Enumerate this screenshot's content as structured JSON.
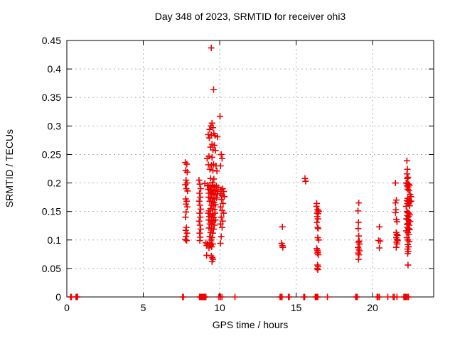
{
  "chart_data": {
    "type": "scatter",
    "title": "Day 348 of 2023, SRMTID for receiver ohi3",
    "xlabel": "GPS time / hours",
    "ylabel": "SRMTID / TECUs",
    "xlim": [
      0,
      24
    ],
    "ylim": [
      0,
      0.45
    ],
    "grid": true,
    "legend": "none",
    "xticks": [
      [
        0,
        "0"
      ],
      [
        5,
        "5"
      ],
      [
        10,
        "10"
      ],
      [
        15,
        "15"
      ],
      [
        20,
        "20"
      ]
    ],
    "yticks": [
      [
        0,
        "0"
      ],
      [
        0.05,
        "0.05"
      ],
      [
        0.1,
        "0.1"
      ],
      [
        0.15,
        "0.15"
      ],
      [
        0.2,
        "0.2"
      ],
      [
        0.25,
        "0.25"
      ],
      [
        0.3,
        "0.3"
      ],
      [
        0.35,
        "0.35"
      ],
      [
        0.4,
        "0.4"
      ],
      [
        0.45,
        "0.45"
      ]
    ],
    "marker": {
      "symbol": "plus",
      "color": "#ee0000",
      "size": 9
    },
    "grid_color": "#b0b0b0",
    "axis_color": "#000000",
    "points": [
      [
        0.25,
        0
      ],
      [
        0.3,
        0
      ],
      [
        0.6,
        0
      ],
      [
        0.65,
        0
      ],
      [
        0.7,
        0
      ],
      [
        7.58,
        0
      ],
      [
        7.63,
        0
      ],
      [
        8.68,
        0
      ],
      [
        8.72,
        0
      ],
      [
        8.76,
        0
      ],
      [
        8.8,
        0
      ],
      [
        8.84,
        0
      ],
      [
        8.88,
        0
      ],
      [
        8.92,
        0
      ],
      [
        8.96,
        0
      ],
      [
        9.0,
        0
      ],
      [
        9.05,
        0
      ],
      [
        9.1,
        0
      ],
      [
        9.95,
        0
      ],
      [
        10.05,
        0
      ],
      [
        10.15,
        0
      ],
      [
        11.0,
        0
      ],
      [
        13.95,
        0
      ],
      [
        14.0,
        0
      ],
      [
        14.08,
        0
      ],
      [
        14.5,
        0
      ],
      [
        14.55,
        0
      ],
      [
        15.5,
        0
      ],
      [
        15.56,
        0
      ],
      [
        16.25,
        0
      ],
      [
        16.3,
        0
      ],
      [
        16.36,
        0
      ],
      [
        16.42,
        0
      ],
      [
        17.05,
        0
      ],
      [
        18.9,
        0
      ],
      [
        18.95,
        0
      ],
      [
        19.0,
        0
      ],
      [
        20.3,
        0
      ],
      [
        20.36,
        0
      ],
      [
        20.45,
        0
      ],
      [
        21.0,
        0
      ],
      [
        21.35,
        0
      ],
      [
        21.42,
        0
      ],
      [
        21.6,
        0
      ],
      [
        22.05,
        0
      ],
      [
        22.1,
        0
      ],
      [
        22.15,
        0
      ],
      [
        22.2,
        0
      ],
      [
        22.28,
        0
      ],
      [
        22.35,
        0
      ],
      [
        7.75,
        0.236
      ],
      [
        7.85,
        0.233
      ],
      [
        7.78,
        0.222
      ],
      [
        7.88,
        0.219
      ],
      [
        7.8,
        0.205
      ],
      [
        7.86,
        0.2
      ],
      [
        7.76,
        0.197
      ],
      [
        7.82,
        0.19
      ],
      [
        7.9,
        0.186
      ],
      [
        7.78,
        0.172
      ],
      [
        7.84,
        0.168
      ],
      [
        7.8,
        0.163
      ],
      [
        7.88,
        0.158
      ],
      [
        7.8,
        0.149
      ],
      [
        7.76,
        0.14
      ],
      [
        7.82,
        0.122
      ],
      [
        7.78,
        0.117
      ],
      [
        7.86,
        0.112
      ],
      [
        7.8,
        0.106
      ],
      [
        7.76,
        0.101
      ],
      [
        7.84,
        0.099
      ],
      [
        8.65,
        0.205
      ],
      [
        8.7,
        0.198
      ],
      [
        8.76,
        0.19
      ],
      [
        8.68,
        0.182
      ],
      [
        8.73,
        0.175
      ],
      [
        8.66,
        0.168
      ],
      [
        8.71,
        0.161
      ],
      [
        8.76,
        0.154
      ],
      [
        8.69,
        0.147
      ],
      [
        8.73,
        0.14
      ],
      [
        8.66,
        0.133
      ],
      [
        8.71,
        0.126
      ],
      [
        8.76,
        0.119
      ],
      [
        8.69,
        0.112
      ],
      [
        8.73,
        0.105
      ],
      [
        8.7,
        0.099
      ],
      [
        9.45,
        0.437
      ],
      [
        9.6,
        0.364
      ],
      [
        9.5,
        0.305
      ],
      [
        9.42,
        0.3
      ],
      [
        9.56,
        0.297
      ],
      [
        9.35,
        0.294
      ],
      [
        9.62,
        0.287
      ],
      [
        9.25,
        0.285
      ],
      [
        9.45,
        0.284
      ],
      [
        9.7,
        0.283
      ],
      [
        9.85,
        0.281
      ],
      [
        9.32,
        0.279
      ],
      [
        9.5,
        0.268
      ],
      [
        9.65,
        0.266
      ],
      [
        9.4,
        0.263
      ],
      [
        9.56,
        0.258
      ],
      [
        9.73,
        0.257
      ],
      [
        9.3,
        0.247
      ],
      [
        9.5,
        0.245
      ],
      [
        9.18,
        0.243
      ],
      [
        9.6,
        0.233
      ],
      [
        9.26,
        0.232
      ],
      [
        9.46,
        0.231
      ],
      [
        9.76,
        0.23
      ],
      [
        9.36,
        0.224
      ],
      [
        9.56,
        0.222
      ],
      [
        9.82,
        0.221
      ],
      [
        9.4,
        0.208
      ],
      [
        9.62,
        0.207
      ],
      [
        9.52,
        0.201
      ],
      [
        9.03,
        0.199
      ],
      [
        9.2,
        0.196
      ],
      [
        9.3,
        0.195
      ],
      [
        9.42,
        0.194
      ],
      [
        9.55,
        0.196
      ],
      [
        9.65,
        0.193
      ],
      [
        9.78,
        0.195
      ],
      [
        9.9,
        0.192
      ],
      [
        9.25,
        0.189
      ],
      [
        9.38,
        0.188
      ],
      [
        9.5,
        0.187
      ],
      [
        9.62,
        0.186
      ],
      [
        9.75,
        0.188
      ],
      [
        9.88,
        0.185
      ],
      [
        9.3,
        0.182
      ],
      [
        9.45,
        0.181
      ],
      [
        9.58,
        0.18
      ],
      [
        9.7,
        0.179
      ],
      [
        9.85,
        0.181
      ],
      [
        9.28,
        0.175
      ],
      [
        9.4,
        0.174
      ],
      [
        9.55,
        0.173
      ],
      [
        9.68,
        0.172
      ],
      [
        9.8,
        0.174
      ],
      [
        9.35,
        0.168
      ],
      [
        9.5,
        0.167
      ],
      [
        9.63,
        0.166
      ],
      [
        9.45,
        0.161
      ],
      [
        9.58,
        0.16
      ],
      [
        9.72,
        0.162
      ],
      [
        9.4,
        0.155
      ],
      [
        9.55,
        0.154
      ],
      [
        9.68,
        0.153
      ],
      [
        9.3,
        0.151
      ],
      [
        9.25,
        0.147
      ],
      [
        9.4,
        0.146
      ],
      [
        9.55,
        0.145
      ],
      [
        9.7,
        0.147
      ],
      [
        9.32,
        0.141
      ],
      [
        9.48,
        0.14
      ],
      [
        9.62,
        0.139
      ],
      [
        9.28,
        0.135
      ],
      [
        9.44,
        0.134
      ],
      [
        9.58,
        0.133
      ],
      [
        9.72,
        0.135
      ],
      [
        9.35,
        0.128
      ],
      [
        9.5,
        0.127
      ],
      [
        9.65,
        0.126
      ],
      [
        9.3,
        0.121
      ],
      [
        9.46,
        0.12
      ],
      [
        9.6,
        0.119
      ],
      [
        9.4,
        0.113
      ],
      [
        9.55,
        0.112
      ],
      [
        9.35,
        0.106
      ],
      [
        9.5,
        0.104
      ],
      [
        9.45,
        0.1
      ],
      [
        9.1,
        0.095
      ],
      [
        9.2,
        0.093
      ],
      [
        9.15,
        0.09
      ],
      [
        9.35,
        0.094
      ],
      [
        9.42,
        0.091
      ],
      [
        9.48,
        0.088
      ],
      [
        9.55,
        0.093
      ],
      [
        9.3,
        0.086
      ],
      [
        9.15,
        0.073
      ],
      [
        9.45,
        0.072
      ],
      [
        9.52,
        0.069
      ],
      [
        9.56,
        0.066
      ],
      [
        9.5,
        0.062
      ],
      [
        10.02,
        0.317
      ],
      [
        10.1,
        0.25
      ],
      [
        10.16,
        0.243
      ],
      [
        10.06,
        0.23
      ],
      [
        10.2,
        0.19
      ],
      [
        10.1,
        0.188
      ],
      [
        10.26,
        0.185
      ],
      [
        10.06,
        0.181
      ],
      [
        10.16,
        0.178
      ],
      [
        10.3,
        0.176
      ],
      [
        10.12,
        0.171
      ],
      [
        10.22,
        0.164
      ],
      [
        10.06,
        0.158
      ],
      [
        10.16,
        0.152
      ],
      [
        10.26,
        0.147
      ],
      [
        10.1,
        0.14
      ],
      [
        10.2,
        0.133
      ],
      [
        10.06,
        0.128
      ],
      [
        10.16,
        0.122
      ],
      [
        10.1,
        0.106
      ],
      [
        10.05,
        0.094
      ],
      [
        14.1,
        0.123
      ],
      [
        14.05,
        0.094
      ],
      [
        14.1,
        0.09
      ],
      [
        14.13,
        0.087
      ],
      [
        15.58,
        0.208
      ],
      [
        15.62,
        0.203
      ],
      [
        16.35,
        0.164
      ],
      [
        16.33,
        0.159
      ],
      [
        16.4,
        0.153
      ],
      [
        16.46,
        0.151
      ],
      [
        16.38,
        0.147
      ],
      [
        16.43,
        0.146
      ],
      [
        16.48,
        0.15
      ],
      [
        16.38,
        0.141
      ],
      [
        16.43,
        0.137
      ],
      [
        16.36,
        0.131
      ],
      [
        16.41,
        0.122
      ],
      [
        16.44,
        0.12
      ],
      [
        16.42,
        0.104
      ],
      [
        16.48,
        0.1
      ],
      [
        16.35,
        0.085
      ],
      [
        16.39,
        0.082
      ],
      [
        16.43,
        0.079
      ],
      [
        16.4,
        0.077
      ],
      [
        16.45,
        0.074
      ],
      [
        16.4,
        0.056
      ],
      [
        16.44,
        0.053
      ],
      [
        16.38,
        0.05
      ],
      [
        16.42,
        0.048
      ],
      [
        19.1,
        0.165
      ],
      [
        19.05,
        0.151
      ],
      [
        19.08,
        0.131
      ],
      [
        19.06,
        0.12
      ],
      [
        19.1,
        0.107
      ],
      [
        19.13,
        0.098
      ],
      [
        19.08,
        0.096
      ],
      [
        19.15,
        0.093
      ],
      [
        19.05,
        0.087
      ],
      [
        19.1,
        0.084
      ],
      [
        19.15,
        0.081
      ],
      [
        19.06,
        0.077
      ],
      [
        19.11,
        0.074
      ],
      [
        19.08,
        0.066
      ],
      [
        20.45,
        0.123
      ],
      [
        20.4,
        0.099
      ],
      [
        20.5,
        0.098
      ],
      [
        20.45,
        0.086
      ],
      [
        21.5,
        0.2
      ],
      [
        21.56,
        0.17
      ],
      [
        21.5,
        0.165
      ],
      [
        21.53,
        0.153
      ],
      [
        21.5,
        0.148
      ],
      [
        21.56,
        0.136
      ],
      [
        21.6,
        0.132
      ],
      [
        21.55,
        0.113
      ],
      [
        21.58,
        0.11
      ],
      [
        21.63,
        0.108
      ],
      [
        21.55,
        0.104
      ],
      [
        21.6,
        0.101
      ],
      [
        21.64,
        0.099
      ],
      [
        21.57,
        0.096
      ],
      [
        21.6,
        0.093
      ],
      [
        21.55,
        0.087
      ],
      [
        22.25,
        0.239
      ],
      [
        22.28,
        0.224
      ],
      [
        22.25,
        0.216
      ],
      [
        22.32,
        0.21
      ],
      [
        22.27,
        0.208
      ],
      [
        22.2,
        0.2
      ],
      [
        22.28,
        0.199
      ],
      [
        22.36,
        0.198
      ],
      [
        22.25,
        0.195
      ],
      [
        22.33,
        0.193
      ],
      [
        22.42,
        0.196
      ],
      [
        22.3,
        0.189
      ],
      [
        22.38,
        0.187
      ],
      [
        22.46,
        0.18
      ],
      [
        22.52,
        0.176
      ],
      [
        22.3,
        0.173
      ],
      [
        22.25,
        0.169
      ],
      [
        22.33,
        0.168
      ],
      [
        22.4,
        0.17
      ],
      [
        22.46,
        0.167
      ],
      [
        22.52,
        0.168
      ],
      [
        22.36,
        0.164
      ],
      [
        22.28,
        0.164
      ],
      [
        22.2,
        0.159
      ],
      [
        22.43,
        0.16
      ],
      [
        22.25,
        0.15
      ],
      [
        22.31,
        0.148
      ],
      [
        22.38,
        0.147
      ],
      [
        22.28,
        0.143
      ],
      [
        22.35,
        0.141
      ],
      [
        22.45,
        0.144
      ],
      [
        22.22,
        0.137
      ],
      [
        22.3,
        0.136
      ],
      [
        22.38,
        0.134
      ],
      [
        22.46,
        0.132
      ],
      [
        22.32,
        0.129
      ],
      [
        22.25,
        0.127
      ],
      [
        22.4,
        0.126
      ],
      [
        22.28,
        0.122
      ],
      [
        22.35,
        0.12
      ],
      [
        22.43,
        0.118
      ],
      [
        22.2,
        0.116
      ],
      [
        22.3,
        0.113
      ],
      [
        22.37,
        0.11
      ],
      [
        22.25,
        0.104
      ],
      [
        22.32,
        0.1
      ],
      [
        22.4,
        0.097
      ],
      [
        22.3,
        0.092
      ],
      [
        22.36,
        0.088
      ],
      [
        22.28,
        0.084
      ],
      [
        22.33,
        0.08
      ],
      [
        22.3,
        0.076
      ],
      [
        22.32,
        0.056
      ]
    ]
  }
}
